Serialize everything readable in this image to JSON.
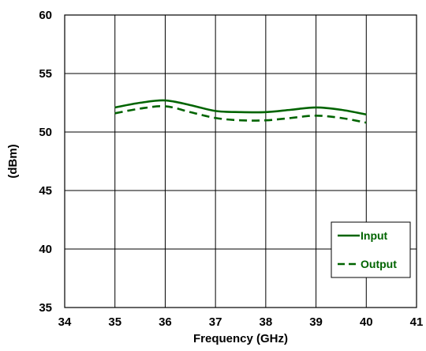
{
  "chart_data": {
    "type": "line",
    "title": "",
    "xlabel": "Frequency (GHz)",
    "ylabel": "(dBm)",
    "xlim": [
      34,
      41
    ],
    "ylim": [
      35,
      60
    ],
    "xticks": [
      34,
      35,
      36,
      37,
      38,
      39,
      40,
      41
    ],
    "yticks": [
      35,
      40,
      45,
      50,
      55,
      60
    ],
    "grid": true,
    "legend_position": "bottom-right",
    "series": [
      {
        "name": "Input",
        "style": "solid",
        "color": "#006400",
        "x": [
          35,
          35.5,
          36,
          36.5,
          37,
          37.5,
          38,
          38.5,
          39,
          39.5,
          40
        ],
        "y": [
          52.1,
          52.5,
          52.7,
          52.3,
          51.8,
          51.7,
          51.7,
          51.9,
          52.1,
          51.9,
          51.5
        ]
      },
      {
        "name": "Output",
        "style": "dashed",
        "color": "#006400",
        "x": [
          35,
          35.5,
          36,
          36.5,
          37,
          37.5,
          38,
          38.5,
          39,
          39.5,
          40
        ],
        "y": [
          51.6,
          52.0,
          52.2,
          51.7,
          51.2,
          51.0,
          51.0,
          51.2,
          51.4,
          51.2,
          50.8
        ]
      }
    ]
  }
}
